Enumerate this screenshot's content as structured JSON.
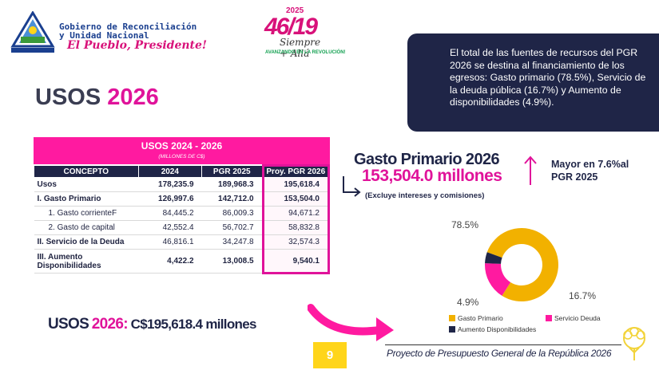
{
  "header": {
    "gov_line1": "Gobierno de Reconciliación",
    "gov_line2": "y Unidad Nacional",
    "slogan": "El Pueblo, Presidente!",
    "badge_year": "2025",
    "badge_number": "46/19",
    "badge_sub": "Siempre + Allá",
    "badge_tagline": "AVANZANDO EN LA REVOLUCIÓN!"
  },
  "title": {
    "main": "USOS",
    "year": "2026"
  },
  "info_box": {
    "text": "El total de las fuentes de recursos del PGR 2026 se destina al financiamiento de los egresos: Gasto primario (78.5%), Servicio de la deuda pública (16.7%) y Aumento de disponibilidades (4.9%)."
  },
  "table": {
    "title": "USOS 2024 - 2026",
    "subtitle": "(MILLONES DE C$)",
    "columns": [
      "CONCEPTO",
      "2024",
      "PGR 2025",
      "Proy. PGR 2026"
    ],
    "rows": [
      {
        "label": "Usos",
        "v2024": "178,235.9",
        "v2025": "189,968.3",
        "v2026": "195,618.4"
      },
      {
        "label": "I. Gasto Primario",
        "v2024": "126,997.6",
        "v2025": "142,712.0",
        "v2026": "153,504.0"
      },
      {
        "label": "1. Gasto corrienteF",
        "v2024": "84,445.2",
        "v2025": "86,009.3",
        "v2026": "94,671.2"
      },
      {
        "label": "2. Gasto de capital",
        "v2024": "42,552.4",
        "v2025": "56,702.7",
        "v2026": "58,832.8"
      },
      {
        "label": "II. Servicio de la Deuda",
        "v2024": "46,816.1",
        "v2025": "34,247.8",
        "v2026": "32,574.3"
      },
      {
        "label_l1": "III. Aumento",
        "label_l2": "Disponibilidades",
        "v2024": "4,422.2",
        "v2025": "13,008.5",
        "v2026": "9,540.1"
      }
    ]
  },
  "gasto_primario": {
    "title": "Gasto Primario 2026",
    "amount": "153,504.0 millones",
    "note": "(Excluye intereses y comisiones)",
    "mayor_l1": "Mayor en 7.6%al",
    "mayor_l2": "PGR 2025"
  },
  "chart_data": {
    "type": "pie",
    "donut": true,
    "title": "",
    "categories": [
      "Gasto Primario",
      "Servicio Deuda",
      "Aumento Disponibilidades"
    ],
    "values": [
      78.5,
      16.7,
      4.9
    ],
    "labels": [
      "78.5%",
      "16.7%",
      "4.9%"
    ],
    "colors": [
      "#f2b100",
      "#ff1aa0",
      "#1f2547"
    ],
    "legend": "bottom"
  },
  "bottom": {
    "usos_label": "USOS",
    "usos_year": "2026:",
    "usos_amount": "C$195,618.4 millones",
    "page_number": "9",
    "footer": "Proyecto de Presupuesto General de la República 2026"
  },
  "colors": {
    "accent": "#e0139a",
    "navy": "#1f2547",
    "gold": "#f2b100",
    "yellow": "#ffd51a"
  }
}
